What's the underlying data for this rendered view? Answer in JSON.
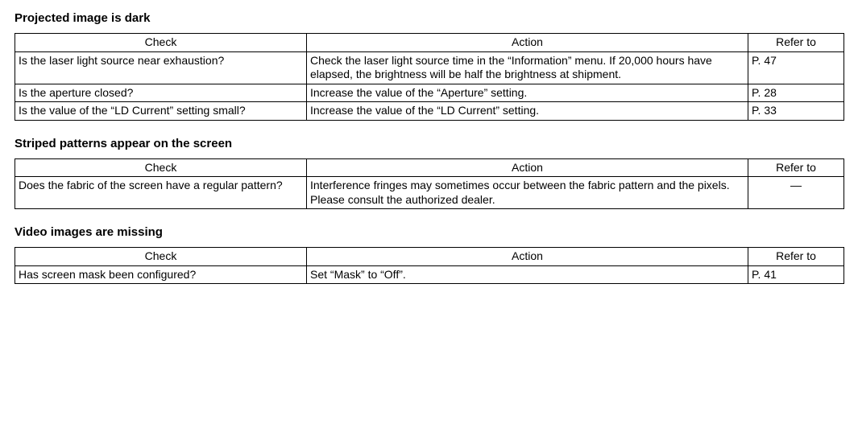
{
  "headers": {
    "check": "Check",
    "action": "Action",
    "refer": "Refer to"
  },
  "sections": [
    {
      "title": "Projected image is dark",
      "rows": [
        {
          "check": "Is the laser light source near exhaustion?",
          "action": "Check the laser light source time in the “Information” menu. If 20,000 hours have elapsed, the brightness will be half the brightness at shipment.",
          "refer": "P. 47"
        },
        {
          "check": "Is the aperture closed?",
          "action": "Increase the value of the “Aperture” setting.",
          "refer": "P. 28"
        },
        {
          "check": "Is the value of the “LD Current” setting small?",
          "action": "Increase the value of the “LD Current” setting.",
          "refer": "P. 33"
        }
      ]
    },
    {
      "title": "Striped patterns appear on the screen",
      "rows": [
        {
          "check": "Does the fabric of the screen have a regular pattern?",
          "action": "Interference fringes may sometimes occur between the fabric pattern and the pixels. Please consult the authorized dealer.",
          "refer": "—",
          "refer_center": true
        }
      ]
    },
    {
      "title": "Video images are missing",
      "rows": [
        {
          "check": "Has screen mask been configured?",
          "action": "Set “Mask” to “Off”.",
          "refer": "P. 41"
        }
      ]
    }
  ]
}
